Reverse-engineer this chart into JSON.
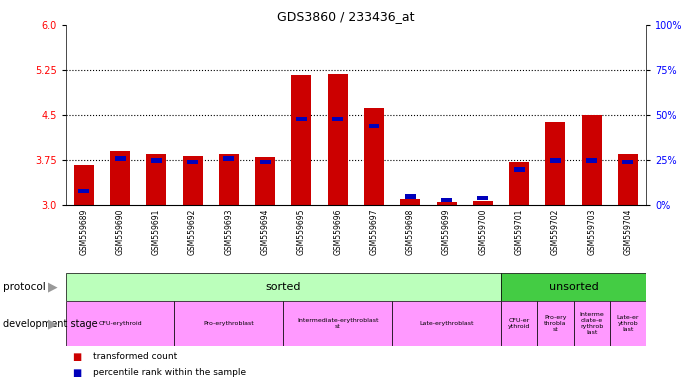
{
  "title": "GDS3860 / 233436_at",
  "samples": [
    "GSM559689",
    "GSM559690",
    "GSM559691",
    "GSM559692",
    "GSM559693",
    "GSM559694",
    "GSM559695",
    "GSM559696",
    "GSM559697",
    "GSM559698",
    "GSM559699",
    "GSM559700",
    "GSM559701",
    "GSM559702",
    "GSM559703",
    "GSM559704"
  ],
  "transformed_count": [
    3.67,
    3.9,
    3.85,
    3.82,
    3.85,
    3.8,
    5.17,
    5.18,
    4.62,
    3.1,
    3.05,
    3.08,
    3.73,
    4.38,
    4.5,
    3.85
  ],
  "percentile_rank_val": [
    8,
    26,
    25,
    24,
    26,
    24,
    48,
    48,
    44,
    5,
    3,
    4,
    20,
    25,
    25,
    24
  ],
  "bar_color": "#cc0000",
  "blue_color": "#0000bb",
  "ylim_left": [
    3.0,
    6.0
  ],
  "ylim_right": [
    0,
    100
  ],
  "yticks_left": [
    3.0,
    3.75,
    4.5,
    5.25,
    6.0
  ],
  "yticks_right": [
    0,
    25,
    50,
    75,
    100
  ],
  "hlines": [
    3.75,
    4.5,
    5.25
  ],
  "bg_color": "#ffffff",
  "bar_width": 0.55,
  "tick_area_color": "#cccccc",
  "sorted_color": "#bbffbb",
  "unsorted_color": "#44cc44",
  "stage_color": "#ff99ff",
  "n_sorted": 12,
  "n_total": 16,
  "protocol_row_labels": [
    "sorted",
    "unsorted"
  ],
  "stage_labels_long": [
    {
      "label": "CFU-erythroid",
      "start": 0,
      "end": 3
    },
    {
      "label": "Pro-erythroblast",
      "start": 3,
      "end": 6
    },
    {
      "label": "Intermediate-erythroblast\nst",
      "start": 6,
      "end": 9
    },
    {
      "label": "Late-erythroblast",
      "start": 9,
      "end": 12
    },
    {
      "label": "CFU-er\nythroid",
      "start": 12,
      "end": 13
    },
    {
      "label": "Pro-ery\nthrobla\nst",
      "start": 13,
      "end": 14
    },
    {
      "label": "Interme\ndiate-e\nrythrob\nlast",
      "start": 14,
      "end": 15
    },
    {
      "label": "Late-er\nythrob\nlast",
      "start": 15,
      "end": 16
    }
  ]
}
